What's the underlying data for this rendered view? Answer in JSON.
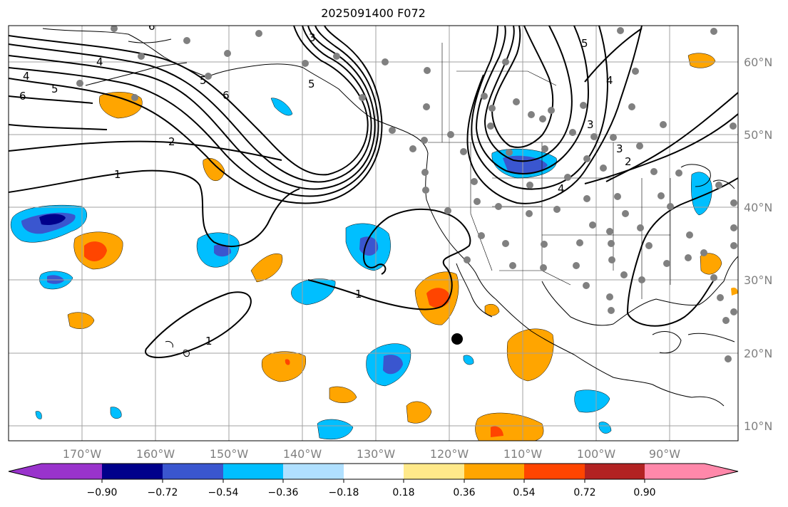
{
  "title": "2025091400 F072",
  "map": {
    "lon_labels": [
      "170°W",
      "160°W",
      "150°W",
      "140°W",
      "130°W",
      "120°W",
      "110°W",
      "100°W",
      "90°W"
    ],
    "lat_labels": [
      "60°N",
      "50°N",
      "40°N",
      "30°N",
      "20°N",
      "10°N"
    ],
    "contour_labels": [
      "6",
      "5",
      "4",
      "4",
      "6",
      "5",
      "2",
      "1",
      "1",
      "1",
      "3",
      "5",
      "3",
      "3",
      "2",
      "4",
      "6",
      "5",
      "4"
    ]
  },
  "colorbar": {
    "ticks": [
      "−0.90",
      "−0.72",
      "−0.54",
      "−0.36",
      "−0.18",
      "0.18",
      "0.36",
      "0.54",
      "0.72",
      "0.90"
    ],
    "colors": [
      "#9933cc",
      "#00008b",
      "#3a56cf",
      "#00bfff",
      "#b0e0ff",
      "#ffffff",
      "#ffe98a",
      "#ffa500",
      "#ff4500",
      "#b22222",
      "#ff88aa"
    ]
  }
}
